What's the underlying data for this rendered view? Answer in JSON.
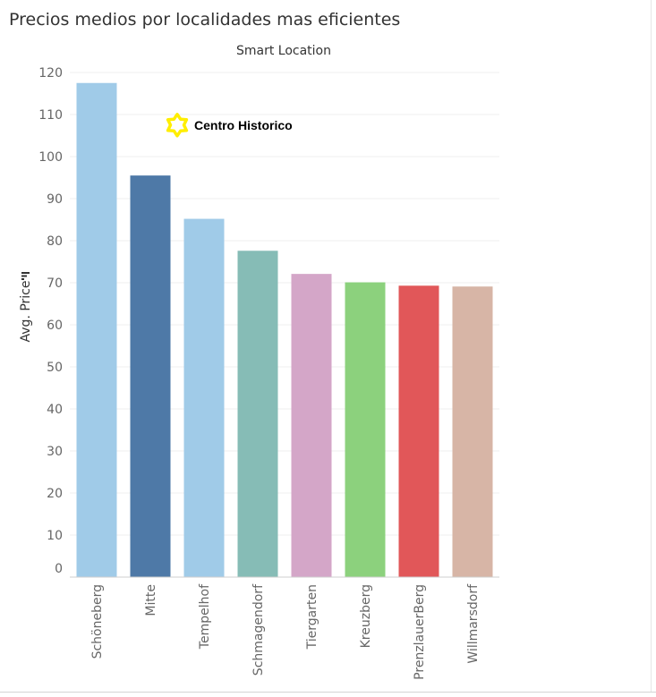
{
  "page_title": "Precios medios por localidades mas eficientes",
  "chart_data": {
    "type": "bar",
    "title": "Smart Location",
    "xlabel": "",
    "ylabel": "Avg. Price",
    "ylim": [
      0,
      120
    ],
    "yticks": [
      0,
      10,
      20,
      30,
      40,
      50,
      60,
      70,
      80,
      90,
      100,
      110,
      120
    ],
    "grid": true,
    "categories": [
      "Schöneberg",
      "Mitte",
      "Tempelhof",
      "Schmagendorf",
      "Tiergarten",
      "Kreuzberg",
      "PrenzlauerBerg",
      "Willmarsdorf"
    ],
    "values": [
      117.5,
      95.5,
      85.2,
      77.6,
      72.1,
      70.1,
      69.3,
      69.1
    ],
    "colors": [
      "#a0cbe8",
      "#4e79a7",
      "#a0cbe8",
      "#86bcb6",
      "#d4a6c8",
      "#8cd17d",
      "#e15759",
      "#d7b5a6"
    ],
    "annotation": {
      "label": "Centro Historico",
      "icon": "star-icon",
      "color": "#ffee00",
      "x_between": [
        "Mitte",
        "Tempelhof"
      ],
      "y": 107.5
    }
  }
}
